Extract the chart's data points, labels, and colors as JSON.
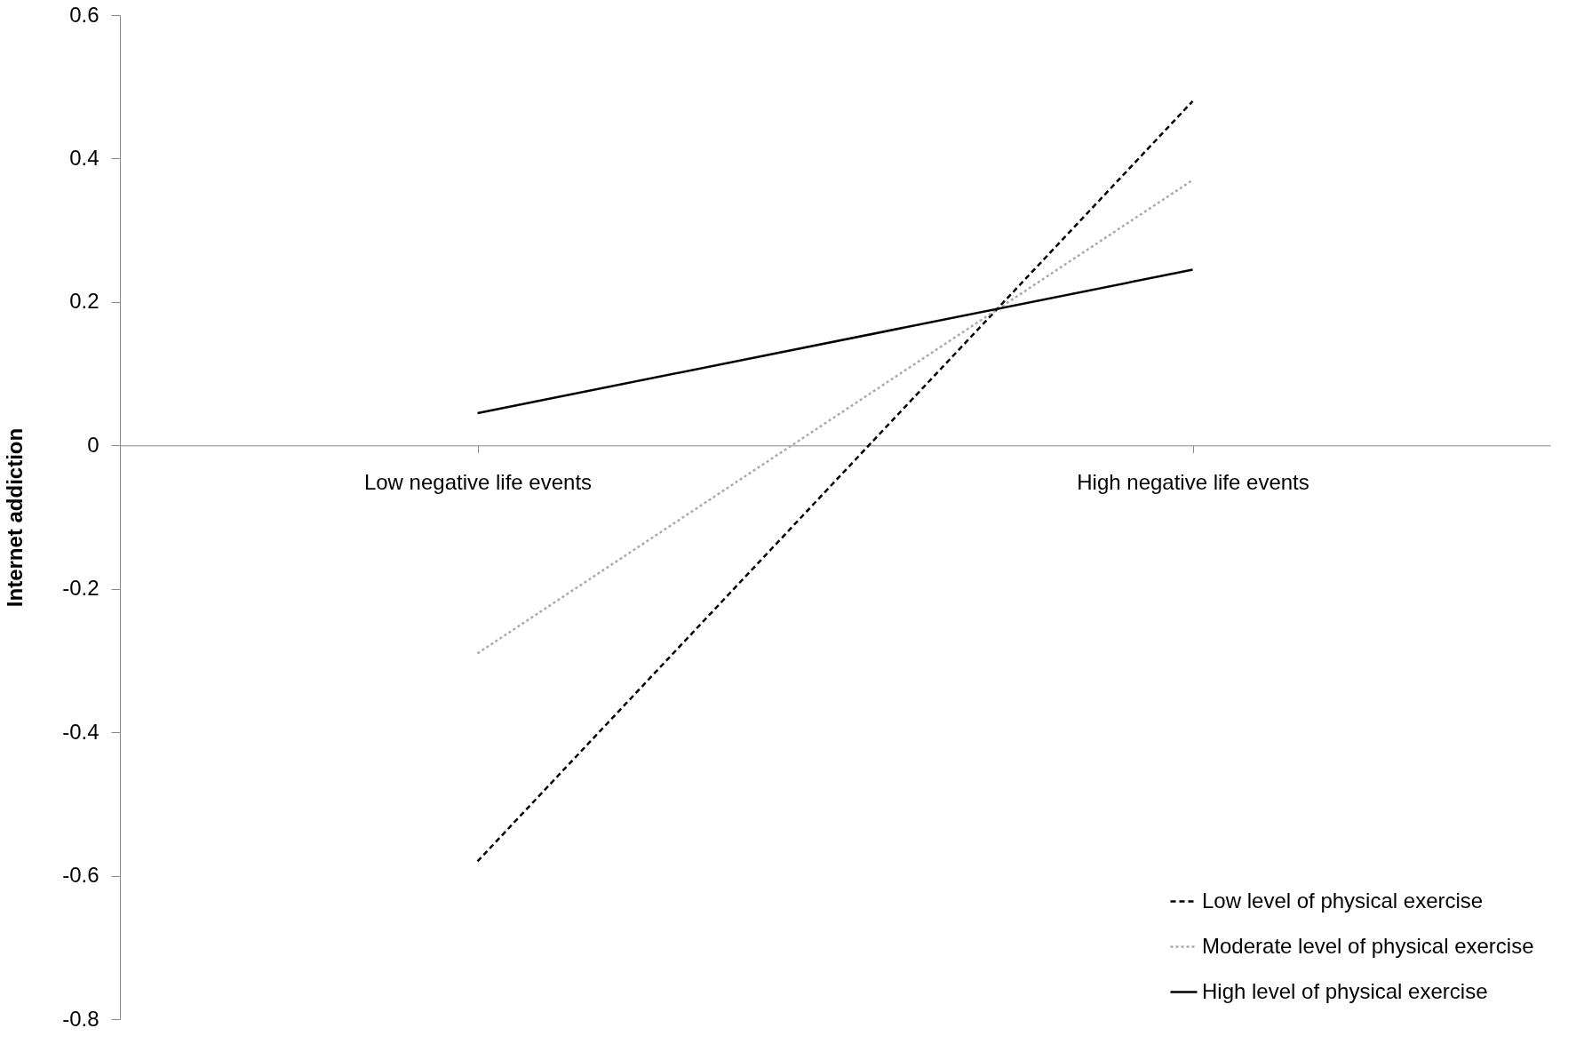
{
  "chart_data": {
    "type": "line",
    "ylabel": "Internet addiction",
    "categories": [
      "Low negative life events",
      "High negative life events"
    ],
    "ylim": [
      -0.8,
      0.6
    ],
    "yticks": [
      -0.8,
      -0.6,
      -0.4,
      -0.2,
      0,
      0.2,
      0.4,
      0.6
    ],
    "grid": false,
    "legend": "bottom right",
    "marker": "none",
    "series": [
      {
        "name": "Low level of physical exercise",
        "color": "#000000",
        "line_style": "dashed",
        "values": [
          -0.58,
          0.48
        ]
      },
      {
        "name": "Moderate level of physical exercise",
        "color": "#aaaaaa",
        "line_style": "dotted",
        "values": [
          -0.29,
          0.37
        ]
      },
      {
        "name": "High level of physical exercise",
        "color": "#000000",
        "line_style": "solid",
        "values": [
          0.045,
          0.245
        ]
      }
    ]
  }
}
